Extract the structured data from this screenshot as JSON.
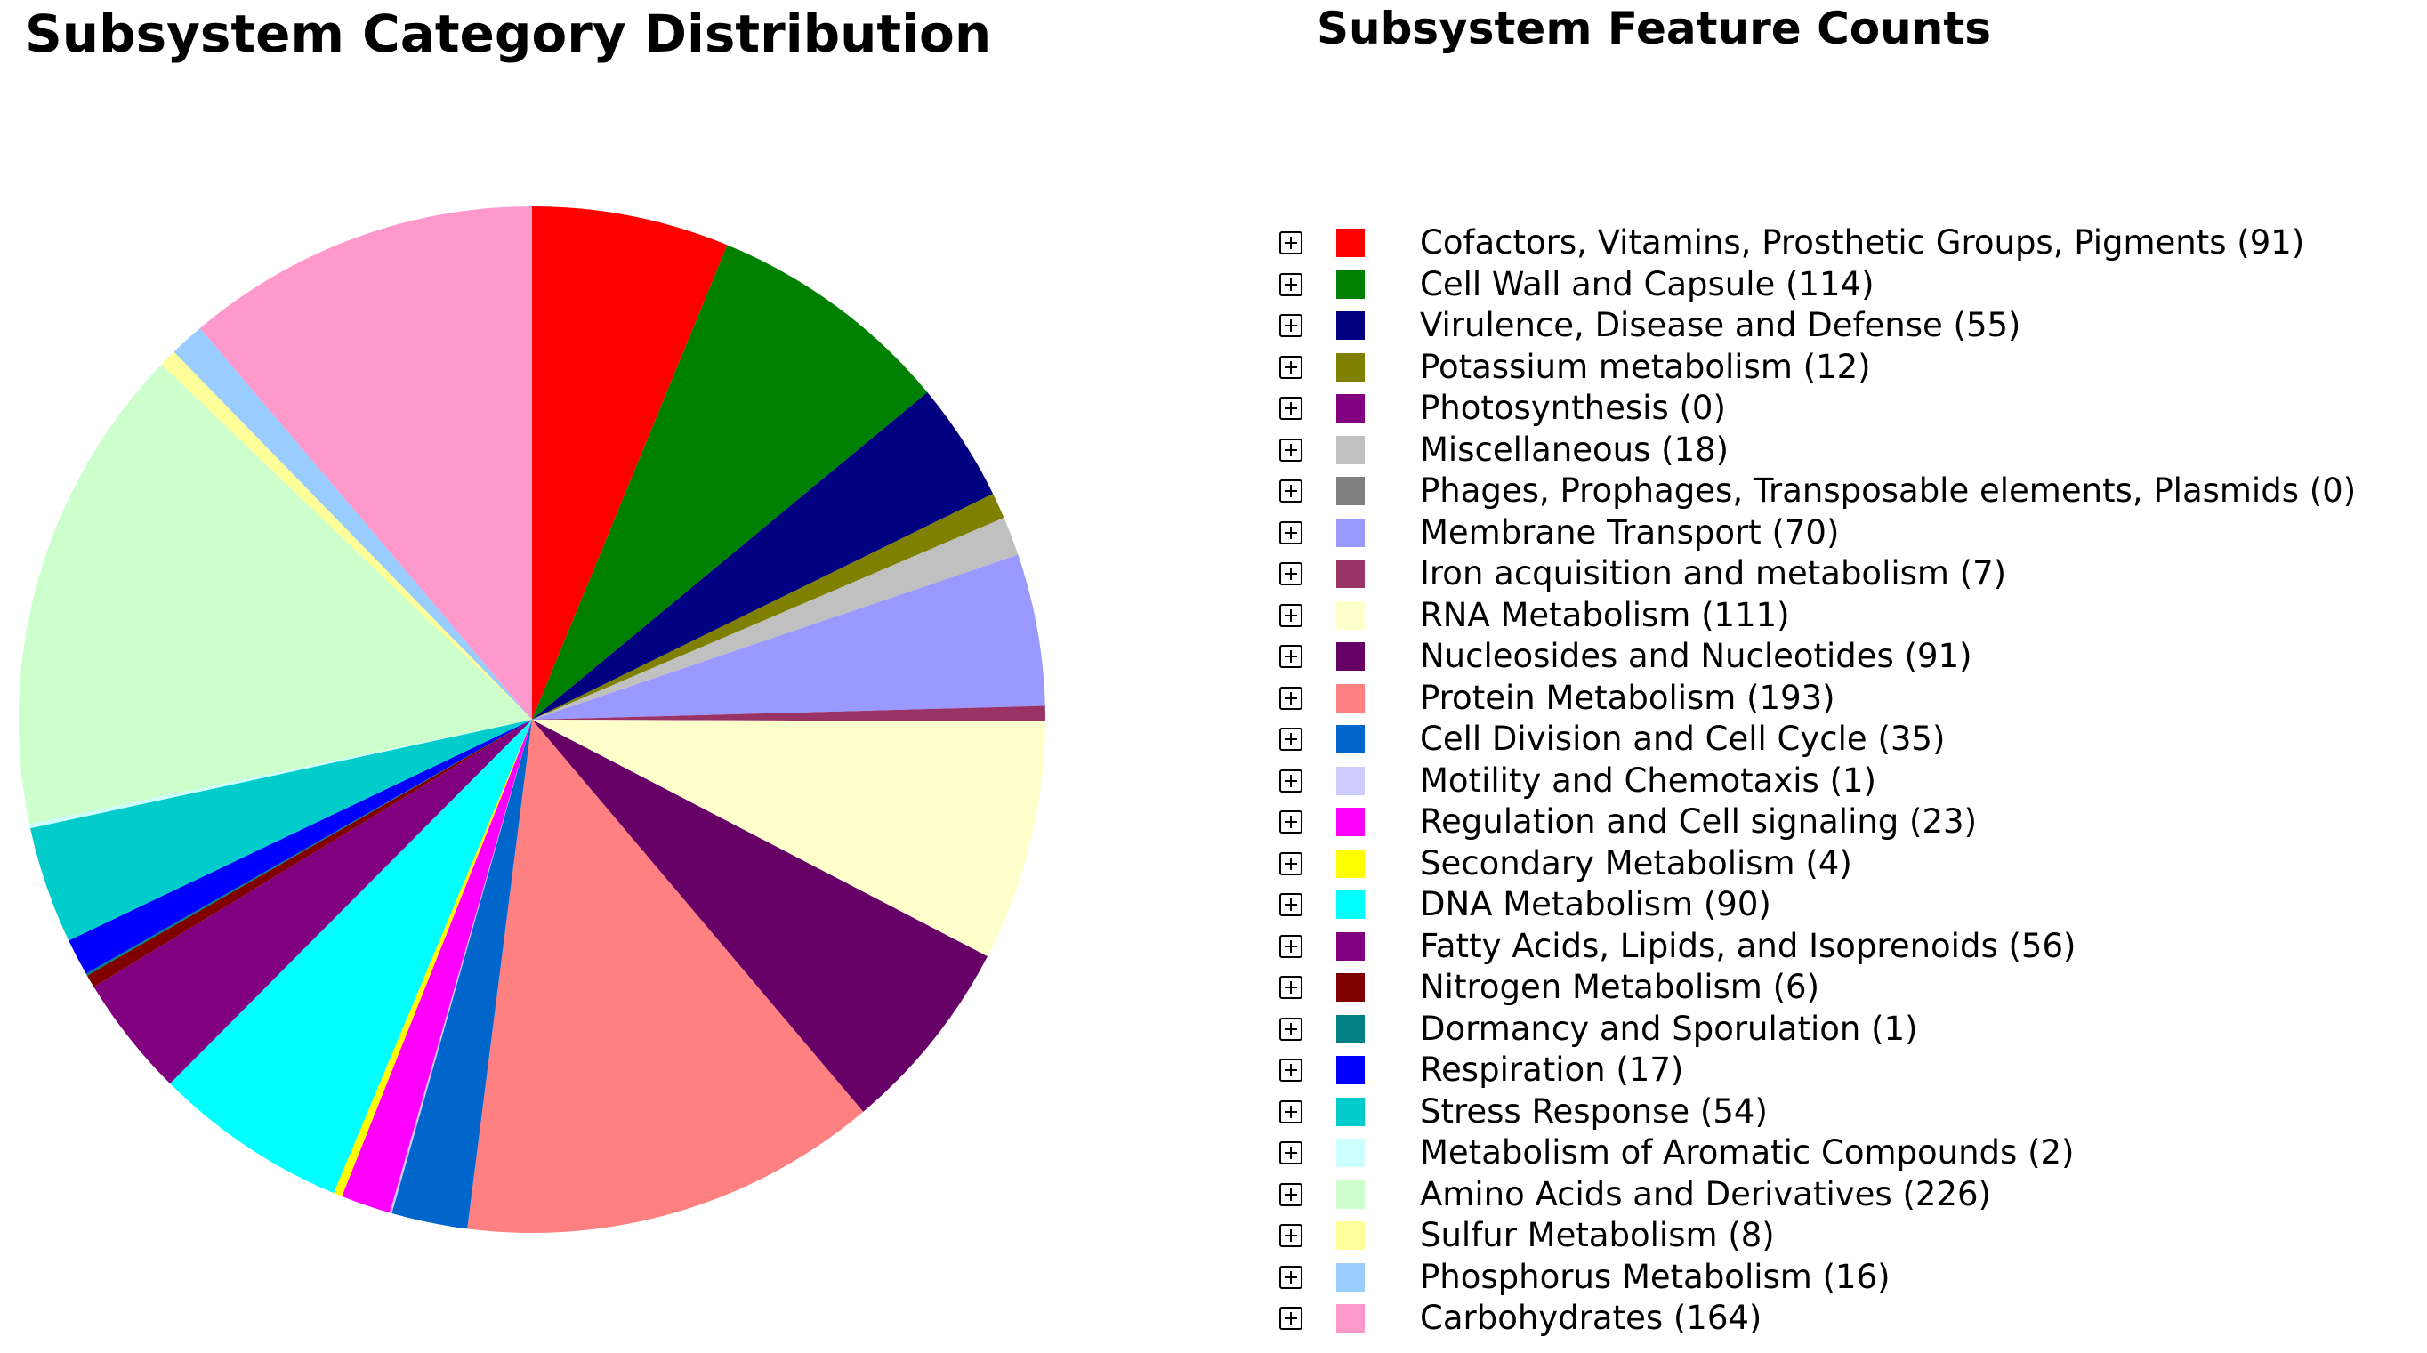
{
  "chart_data": {
    "type": "pie",
    "title": "Subsystem Category Distribution",
    "legend_title": "Subsystem Feature Counts",
    "slices": [
      {
        "label": "Cofactors, Vitamins, Prosthetic Groups, Pigments",
        "value": 91,
        "color": "#ff0000"
      },
      {
        "label": "Cell Wall and Capsule",
        "value": 114,
        "color": "#008000"
      },
      {
        "label": "Virulence, Disease and Defense",
        "value": 55,
        "color": "#000080"
      },
      {
        "label": "Potassium metabolism",
        "value": 12,
        "color": "#808000"
      },
      {
        "label": "Photosynthesis",
        "value": 0,
        "color": "#800080"
      },
      {
        "label": "Miscellaneous",
        "value": 18,
        "color": "#c0c0c0"
      },
      {
        "label": "Phages, Prophages, Transposable elements, Plasmids",
        "value": 0,
        "color": "#808080"
      },
      {
        "label": "Membrane Transport",
        "value": 70,
        "color": "#9999ff"
      },
      {
        "label": "Iron acquisition and metabolism",
        "value": 7,
        "color": "#993366"
      },
      {
        "label": "RNA Metabolism",
        "value": 111,
        "color": "#ffffcc"
      },
      {
        "label": "Nucleosides and Nucleotides",
        "value": 91,
        "color": "#660066"
      },
      {
        "label": "Protein Metabolism",
        "value": 193,
        "color": "#ff8080"
      },
      {
        "label": "Cell Division and Cell Cycle",
        "value": 35,
        "color": "#0066cc"
      },
      {
        "label": "Motility and Chemotaxis",
        "value": 1,
        "color": "#ccccff"
      },
      {
        "label": "Regulation and Cell signaling",
        "value": 23,
        "color": "#ff00ff"
      },
      {
        "label": "Secondary Metabolism",
        "value": 4,
        "color": "#ffff00"
      },
      {
        "label": "DNA Metabolism",
        "value": 90,
        "color": "#00ffff"
      },
      {
        "label": "Fatty Acids, Lipids, and Isoprenoids",
        "value": 56,
        "color": "#800080"
      },
      {
        "label": "Nitrogen Metabolism",
        "value": 6,
        "color": "#800000"
      },
      {
        "label": "Dormancy and Sporulation",
        "value": 1,
        "color": "#008080"
      },
      {
        "label": "Respiration",
        "value": 17,
        "color": "#0000ff"
      },
      {
        "label": "Stress Response",
        "value": 54,
        "color": "#00cccc"
      },
      {
        "label": "Metabolism of Aromatic Compounds",
        "value": 2,
        "color": "#ccffff"
      },
      {
        "label": "Amino Acids and Derivatives",
        "value": 226,
        "color": "#ccffcc"
      },
      {
        "label": "Sulfur Metabolism",
        "value": 8,
        "color": "#ffff99"
      },
      {
        "label": "Phosphorus Metabolism",
        "value": 16,
        "color": "#99ccff"
      },
      {
        "label": "Carbohydrates",
        "value": 164,
        "color": "#ff99cc"
      }
    ],
    "start_angle": "12 o'clock",
    "direction": "clockwise",
    "legend_placement": "right",
    "legend_icon": "expand-plus-icon"
  }
}
